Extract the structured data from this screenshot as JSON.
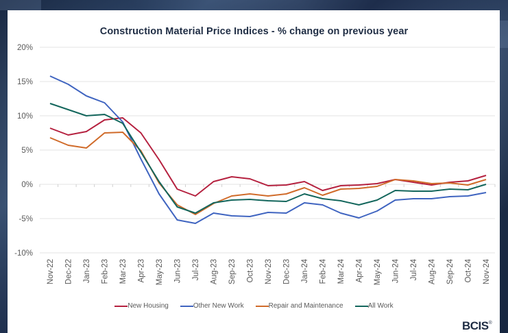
{
  "chart_data": {
    "type": "line",
    "title": "Construction Material Price Indices - % change on previous year",
    "xlabel": "",
    "ylabel": "",
    "ylim": [
      -10,
      20
    ],
    "yticks": [
      20,
      15,
      10,
      5,
      0,
      -5,
      -10
    ],
    "ytick_labels": [
      "20%",
      "15%",
      "10%",
      "5%",
      "0%",
      "-5%",
      "-10%"
    ],
    "grid": true,
    "legend_position": "bottom",
    "categories": [
      "Nov-22",
      "Dec-22",
      "Jan-23",
      "Feb-23",
      "Mar-23",
      "Apr-23",
      "May-23",
      "Jun-23",
      "Jul-23",
      "Aug-23",
      "Sep-23",
      "Oct-23",
      "Nov-23",
      "Dec-23",
      "Jan-24",
      "Feb-24",
      "Mar-24",
      "Apr-24",
      "May-24",
      "Jun-24",
      "Jul-24",
      "Aug-24",
      "Sep-24",
      "Oct-24",
      "Nov-24"
    ],
    "series": [
      {
        "name": "New Housing",
        "color": "#b5213f",
        "values": [
          8.2,
          7.2,
          7.7,
          9.4,
          9.7,
          7.5,
          3.6,
          -0.7,
          -1.7,
          0.4,
          1.1,
          0.8,
          -0.2,
          -0.1,
          0.4,
          -0.9,
          -0.2,
          -0.1,
          0.1,
          0.7,
          0.3,
          -0.1,
          0.3,
          0.5,
          1.3
        ]
      },
      {
        "name": "Other New Work",
        "color": "#3f64c0",
        "values": [
          15.8,
          14.6,
          12.9,
          11.9,
          9.1,
          3.7,
          -1.4,
          -5.2,
          -5.7,
          -4.2,
          -4.6,
          -4.7,
          -4.1,
          -4.2,
          -2.7,
          -3.0,
          -4.2,
          -4.9,
          -3.9,
          -2.3,
          -2.1,
          -2.1,
          -1.8,
          -1.7,
          -1.2
        ]
      },
      {
        "name": "Repair and Maintenance",
        "color": "#d06b2a",
        "values": [
          6.8,
          5.7,
          5.3,
          7.5,
          7.6,
          4.9,
          0.2,
          -3.0,
          -4.4,
          -2.8,
          -1.7,
          -1.4,
          -1.7,
          -1.4,
          -0.5,
          -1.6,
          -0.7,
          -0.6,
          -0.3,
          0.7,
          0.5,
          0.1,
          0.2,
          -0.1,
          0.7
        ]
      },
      {
        "name": "All Work",
        "color": "#13665c",
        "values": [
          11.8,
          10.9,
          10.0,
          10.2,
          8.9,
          4.7,
          0.4,
          -3.3,
          -4.2,
          -2.7,
          -2.3,
          -2.2,
          -2.4,
          -2.5,
          -1.4,
          -2.1,
          -2.4,
          -3.0,
          -2.3,
          -0.9,
          -1.0,
          -1.0,
          -0.7,
          -0.8,
          0.0
        ]
      }
    ]
  },
  "logo": {
    "text": "BCIS",
    "mark": "®"
  }
}
